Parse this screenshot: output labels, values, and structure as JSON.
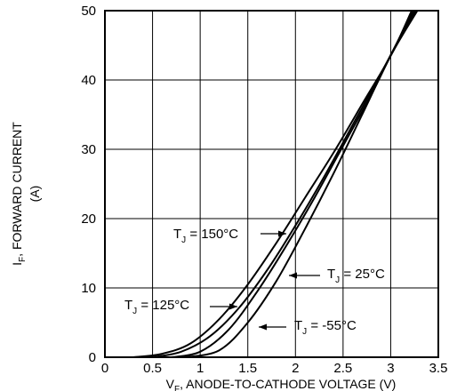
{
  "chart_data": {
    "type": "line",
    "xlabel_main": "V",
    "xlabel_sub": "F",
    "xlabel_rest": ", ANODE-TO-CATHODE VOLTAGE (V)",
    "ylabel_main": "I",
    "ylabel_sub": "F",
    "ylabel_rest": ", FORWARD CURRENT",
    "ylabel_line2": "(A)",
    "xlim": [
      0,
      3.5
    ],
    "ylim": [
      0,
      50
    ],
    "x_ticks": [
      "0",
      "0.5",
      "1",
      "1.5",
      "2",
      "2.5",
      "3",
      "3.5"
    ],
    "y_ticks": [
      "0",
      "10",
      "20",
      "30",
      "40",
      "50"
    ],
    "grid": true,
    "series": [
      {
        "name": "TJ = 150°C",
        "label_main": "T",
        "label_sub": "J",
        "label_rest": " = 150°C",
        "x": [
          0.3,
          0.6,
          0.9,
          1.2,
          1.5,
          1.8,
          2.1,
          2.4,
          2.7,
          3.0,
          3.22
        ],
        "y": [
          0,
          0.5,
          2.0,
          5.5,
          10.5,
          16.5,
          23.0,
          29.5,
          36.5,
          43.5,
          50
        ]
      },
      {
        "name": "TJ = 125°C",
        "label_main": "T",
        "label_sub": "J",
        "label_rest": " = 125°C",
        "x": [
          0.5,
          0.8,
          1.1,
          1.4,
          1.7,
          2.0,
          2.3,
          2.6,
          2.9,
          3.24
        ],
        "y": [
          0,
          0.8,
          3.0,
          7.0,
          12.5,
          19.0,
          26.0,
          33.5,
          41.0,
          50
        ]
      },
      {
        "name": "TJ = 25°C",
        "label_main": "T",
        "label_sub": "J",
        "label_rest": " = 25°C",
        "x": [
          0.7,
          1.0,
          1.3,
          1.6,
          1.9,
          2.2,
          2.5,
          2.8,
          3.0,
          3.26
        ],
        "y": [
          0,
          0.8,
          4.0,
          9.5,
          16.0,
          23.0,
          30.5,
          38.0,
          43.5,
          50
        ]
      },
      {
        "name": "TJ = -55°C",
        "label_main": "T",
        "label_sub": "J",
        "label_rest": " = -55°C",
        "x": [
          0.85,
          1.2,
          1.5,
          1.8,
          2.1,
          2.4,
          2.7,
          3.0,
          3.28
        ],
        "y": [
          0,
          1.0,
          5.0,
          11.0,
          18.5,
          26.5,
          35.0,
          43.5,
          50
        ]
      }
    ]
  }
}
